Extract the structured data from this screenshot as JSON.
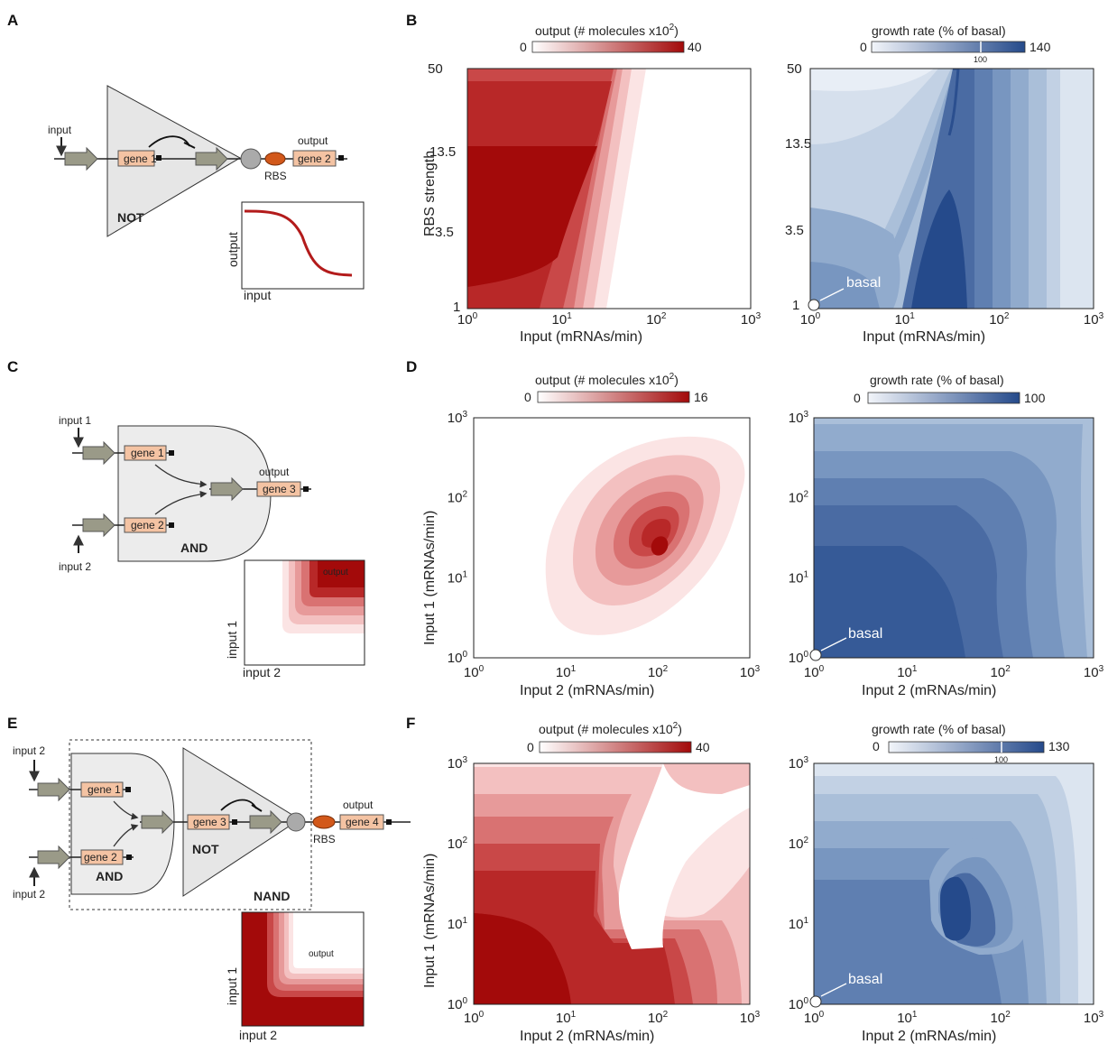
{
  "panels": {
    "A": {
      "label": "A",
      "input": "input",
      "gene1": "gene 1",
      "gene2": "gene 2",
      "output": "output",
      "rbs": "RBS",
      "gate": "NOT",
      "inset_y": "output",
      "inset_x": "input"
    },
    "B": {
      "label": "B",
      "cb_left": {
        "title": "output (# molecules x10",
        "sup": "2",
        "close": ")",
        "min": "0",
        "max": "40"
      },
      "cb_right": {
        "title": "growth rate (% of basal)",
        "min": "0",
        "max": "140",
        "mid": "100"
      },
      "ylabel": "RBS strength",
      "xlabel_left": "Input (mRNAs/min)",
      "xlabel_right": "Input (mRNAs/min)",
      "yticks": [
        "50",
        "13.5",
        "3.5",
        "1"
      ],
      "basal": "basal"
    },
    "C": {
      "label": "C",
      "input1": "input 1",
      "input2": "input 2",
      "gene1": "gene 1",
      "gene2": "gene 2",
      "gene3": "gene 3",
      "output": "output",
      "gate": "AND",
      "inset_label": "output",
      "inset_y": "input 1",
      "inset_x": "input 2"
    },
    "D": {
      "label": "D",
      "cb_left": {
        "title": "output (# molecules x10",
        "sup": "2",
        "close": ")",
        "min": "0",
        "max": "16"
      },
      "cb_right": {
        "title": "growth rate (% of basal)",
        "min": "0",
        "max": "100"
      },
      "ylabel": "Input 1 (mRNAs/min)",
      "xlabel_left": "Input 2 (mRNAs/min)",
      "xlabel_right": "Input 2 (mRNAs/min)",
      "basal": "basal"
    },
    "E": {
      "label": "E",
      "input_top": "input 2",
      "input_bottom": "input 2",
      "gene1": "gene 1",
      "gene2": "gene 2",
      "gene3": "gene 3",
      "gene4": "gene 4",
      "output": "output",
      "rbs": "RBS",
      "gate_and": "AND",
      "gate_not": "NOT",
      "gate_nand": "NAND",
      "inset_label": "output",
      "inset_y": "input 1",
      "inset_x": "input 2"
    },
    "F": {
      "label": "F",
      "cb_left": {
        "title": "output (# molecules x10",
        "sup": "2",
        "close": ")",
        "min": "0",
        "max": "40"
      },
      "cb_right": {
        "title": "growth rate (% of basal)",
        "min": "0",
        "max": "130",
        "mid": "100"
      },
      "ylabel": "Input 1 (mRNAs/min)",
      "xlabel_left": "Input 2 (mRNAs/min)",
      "xlabel_right": "Input 2 (mRNAs/min)",
      "basal": "basal"
    }
  },
  "log_tick_base": "10",
  "log_tick_exps": [
    "0",
    "1",
    "2",
    "3"
  ],
  "colors": {
    "red_levels": [
      "#fbe4e4",
      "#f3c0c0",
      "#e79a9a",
      "#d97272",
      "#c94848",
      "#b82828",
      "#a30a0a"
    ],
    "blue_levels": [
      "#e8eef6",
      "#d6e0ed",
      "#c2d1e4",
      "#aabfd9",
      "#91abcd",
      "#7896c0",
      "#5f7fb1",
      "#4a6ba3",
      "#365a97",
      "#254a8b"
    ],
    "gene_box": "#f4c3a3",
    "promoter": "#9a9a88",
    "rbs": "#d2581a",
    "gate_fill": "#e6e6e6",
    "curve": "#b31b1b"
  },
  "chart_data": [
    {
      "panel": "B-left",
      "type": "heatmap",
      "xlabel": "Input (mRNAs/min)",
      "ylabel": "RBS strength",
      "xscale": "log",
      "xlim": [
        1,
        1000
      ],
      "ylim": [
        1,
        50
      ],
      "yticks": [
        "1",
        "3.5",
        "13.5",
        "50"
      ],
      "colorbar": {
        "label": "output (# molecules x10^2)",
        "range": [
          0,
          40
        ]
      },
      "description_values": "output high (~40) at low input, drops to 0 beyond ~20-60 mRNAs/min"
    },
    {
      "panel": "B-right",
      "type": "heatmap",
      "xlabel": "Input (mRNAs/min)",
      "xscale": "log",
      "xlim": [
        1,
        1000
      ],
      "ylim": [
        1,
        50
      ],
      "colorbar": {
        "label": "growth rate (% of basal)",
        "range": [
          0,
          140
        ],
        "marked": 100
      },
      "annotation": "basal"
    },
    {
      "panel": "D-left",
      "type": "heatmap",
      "xlabel": "Input 2 (mRNAs/min)",
      "ylabel": "Input 1 (mRNAs/min)",
      "xscale": "log",
      "yscale": "log",
      "xlim": [
        1,
        1000
      ],
      "ylim": [
        1,
        1000
      ],
      "colorbar": {
        "label": "output (# molecules x10^2)",
        "range": [
          0,
          16
        ]
      },
      "peak": {
        "x": 100,
        "y": 25
      }
    },
    {
      "panel": "D-right",
      "type": "heatmap",
      "xlabel": "Input 2 (mRNAs/min)",
      "xscale": "log",
      "yscale": "log",
      "xlim": [
        1,
        1000
      ],
      "ylim": [
        1,
        1000
      ],
      "colorbar": {
        "label": "growth rate (% of basal)",
        "range": [
          0,
          100
        ]
      },
      "annotation": "basal"
    },
    {
      "panel": "F-left",
      "type": "heatmap",
      "xlabel": "Input 2 (mRNAs/min)",
      "ylabel": "Input 1 (mRNAs/min)",
      "xscale": "log",
      "yscale": "log",
      "xlim": [
        1,
        1000
      ],
      "ylim": [
        1,
        1000
      ],
      "colorbar": {
        "label": "output (# molecules x10^2)",
        "range": [
          0,
          40
        ]
      }
    },
    {
      "panel": "F-right",
      "type": "heatmap",
      "xlabel": "Input 2 (mRNAs/min)",
      "xscale": "log",
      "yscale": "log",
      "xlim": [
        1,
        1000
      ],
      "ylim": [
        1,
        1000
      ],
      "colorbar": {
        "label": "growth rate (% of basal)",
        "range": [
          0,
          130
        ],
        "marked": 100
      },
      "annotation": "basal"
    }
  ]
}
